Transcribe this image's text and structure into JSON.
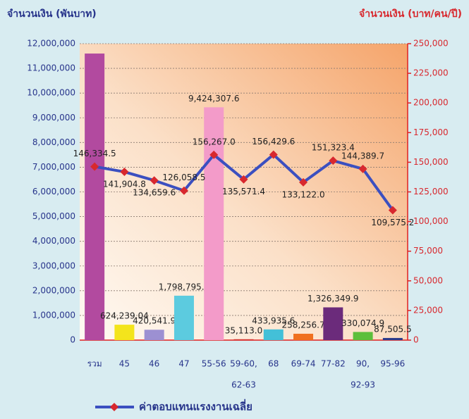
{
  "chart_data": {
    "type": "bar-line",
    "y_title": "จำนวนเงิน (พันบาท)",
    "y2_title": "จำนวนเงิน (บาท/คน/ปี)",
    "categories": [
      "รวม",
      "45",
      "46",
      "47",
      "55-56",
      [
        "59-60,",
        "62-63"
      ],
      "68",
      "69-74",
      "77-82",
      [
        "90,",
        "92-93"
      ],
      "95-96"
    ],
    "ylim": [
      0,
      12000000
    ],
    "yticks": [
      0,
      {
        "value": 1000000,
        "label": "1,000,000"
      },
      {
        "value": 2000000,
        "label": "2,000,000"
      },
      {
        "value": 3000000,
        "label": "3,000,000"
      },
      {
        "value": 4000000,
        "label": "4,000,000"
      },
      {
        "value": 5000000,
        "label": "5,000,000"
      },
      {
        "value": 6000000,
        "label": "6,000,000"
      },
      {
        "value": 7000000,
        "label": "7,000,000"
      },
      {
        "value": 8000000,
        "label": "8,000,000"
      },
      {
        "value": 9000000,
        "label": "9,000,000"
      },
      {
        "value": 10000000,
        "label": "10,000,000"
      },
      {
        "value": 11000000,
        "label": "11,000,000"
      },
      {
        "value": 12000000,
        "label": "12,000,000"
      }
    ],
    "y2lim": [
      0,
      250000
    ],
    "y2ticks": [
      0,
      {
        "value": 25000,
        "label": "25,000"
      },
      {
        "value": 50000,
        "label": "50,000"
      },
      {
        "value": 75000,
        "label": "75,000"
      },
      {
        "value": 100000,
        "label": "100,000"
      },
      {
        "value": 125000,
        "label": "125,000"
      },
      {
        "value": 150000,
        "label": "150,000"
      },
      {
        "value": 175000,
        "label": "175,000"
      },
      {
        "value": 200000,
        "label": "200,000"
      },
      {
        "value": 225000,
        "label": "225,000"
      },
      {
        "value": 250000,
        "label": "250,000"
      }
    ],
    "grid": true,
    "series": [
      {
        "type": "bar",
        "colors": [
          "#b24a9f",
          "#f3e41c",
          "#9c90d2",
          "#5ccbdf",
          "#f39bc9",
          "#d2302b",
          "#43c0d8",
          "#f0701f",
          "#6b2b7b",
          "#5cbf3b",
          "#2b3b8b"
        ],
        "values": [
          11600000,
          624239.04,
          420541.9,
          1798795.1,
          9424307.6,
          35113.0,
          433935.6,
          258256.7,
          1326349.9,
          330074.9,
          87505.5
        ],
        "value_labels": [
          null,
          "624,239.04",
          "420,541.9",
          "1,798,795.1",
          "9,424,307.6",
          "35,113.0",
          "433,935.6",
          "258,256.7",
          "1,326,349.9",
          "330,074.9",
          "87,505.5"
        ]
      },
      {
        "type": "line",
        "name": "ค่าตอบแทนแรงงานเฉลี่ย",
        "axis": "y2",
        "color": "#3b4fc0",
        "marker_color": "#d8282e",
        "values": [
          146334.5,
          141904.8,
          134659.6,
          126058.5,
          156267.0,
          135571.4,
          156429.6,
          133122.0,
          151323.4,
          144389.7,
          109575.2
        ],
        "value_labels": [
          "146,334.5",
          "141,904.8",
          "134,659.6",
          "126,058.5",
          "156,267.0",
          "135,571.4",
          "156,429.6",
          "133,122.0",
          "151,323.4",
          "144,389.7",
          "109,575.2"
        ]
      }
    ]
  }
}
